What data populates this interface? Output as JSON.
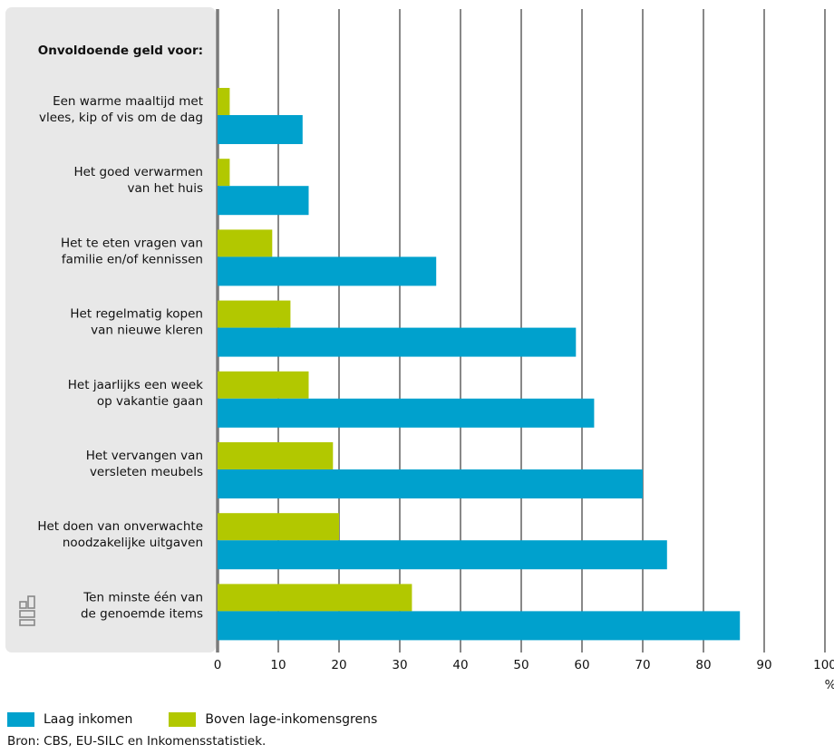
{
  "chart_data": {
    "type": "bar",
    "orientation": "horizontal",
    "title": "Onvoldoende geld voor:",
    "categories": [
      [
        "Een warme maaltijd met",
        "vlees, kip of vis om de dag"
      ],
      [
        "Het goed verwarmen",
        "van het huis"
      ],
      [
        "Het te eten vragen van",
        "familie en/of kennissen"
      ],
      [
        "Het regelmatig kopen",
        "van nieuwe kleren"
      ],
      [
        "Het jaarlijks een week",
        "op vakantie gaan"
      ],
      [
        "Het vervangen van",
        "versleten meubels"
      ],
      [
        "Het doen van onverwachte",
        "noodzakelijke uitgaven"
      ],
      [
        "Ten minste één van",
        "de genoemde items"
      ]
    ],
    "series": [
      {
        "name": "Boven lage-inkomensgrens",
        "color": "#b2c800",
        "values": [
          2,
          2,
          9,
          12,
          15,
          19,
          20,
          32
        ]
      },
      {
        "name": "Laag inkomen",
        "color": "#00a1cd",
        "values": [
          14,
          15,
          36,
          59,
          62,
          70,
          74,
          86
        ]
      }
    ],
    "xlim": [
      0,
      100
    ],
    "xticks": [
      0,
      10,
      20,
      30,
      40,
      50,
      60,
      70,
      80,
      90,
      100
    ],
    "xunit": "%",
    "grid": true,
    "legend": "bottom-left"
  },
  "legend": {
    "low_income": "Laag inkomen",
    "above_threshold": "Boven lage-inkomensgrens"
  },
  "source": "Bron: CBS, EU-SILC en Inkomensstatistiek.",
  "logo_icon": "cbs-logo-icon"
}
